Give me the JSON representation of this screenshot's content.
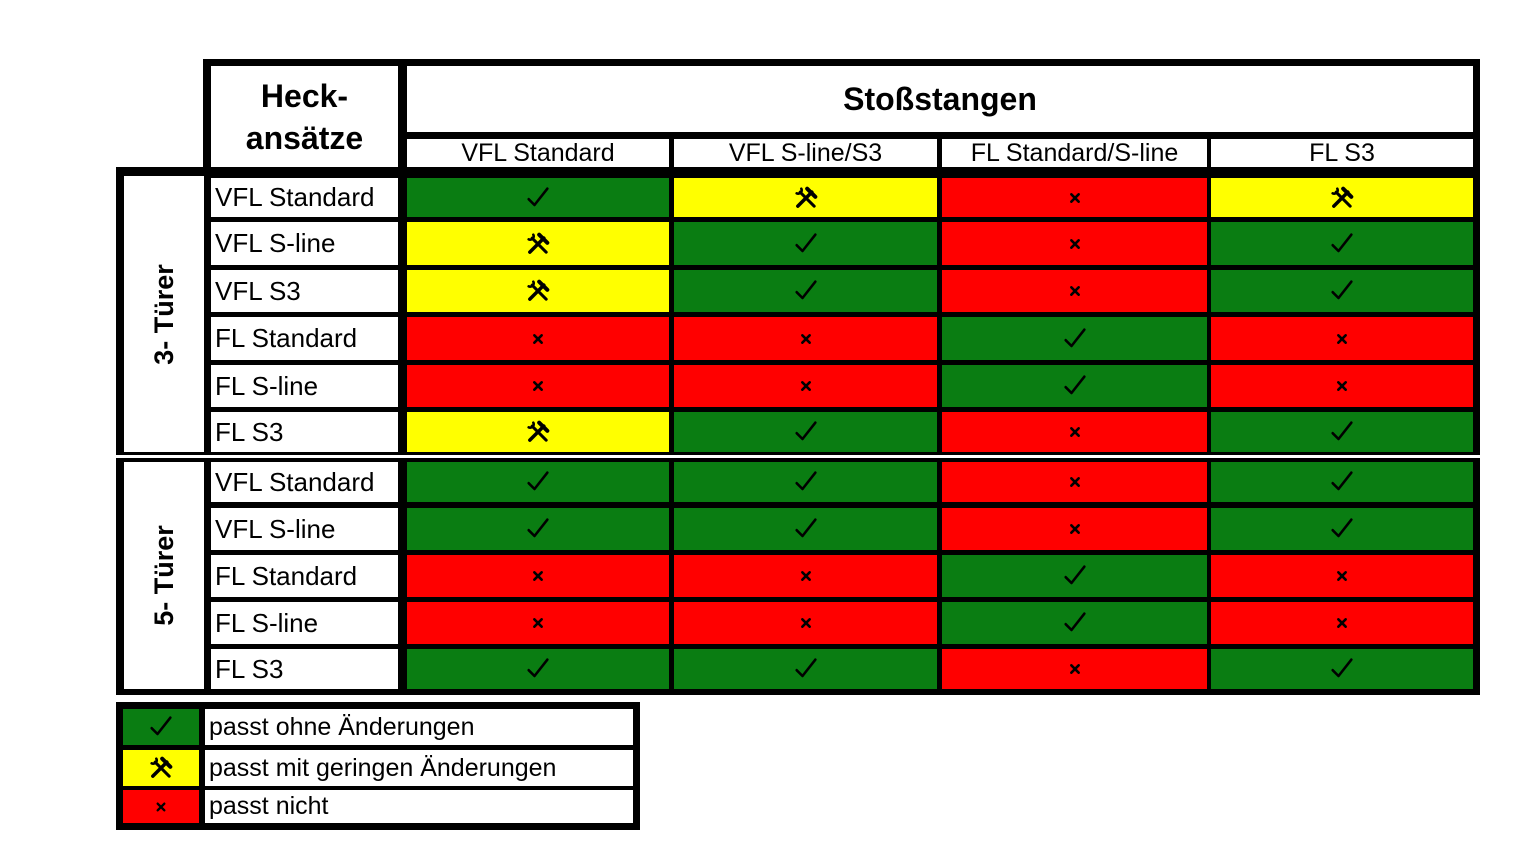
{
  "table": {
    "corner_title_line1": "Heck-",
    "corner_title_line2": "ansätze",
    "main_title": "Stoßstangen",
    "columns": [
      "VFL Standard",
      "VFL S-line/S3",
      "FL Standard/S-line",
      "FL S3"
    ],
    "groups": [
      {
        "label": "3- Türer",
        "rows": [
          {
            "label": "VFL Standard",
            "cells": [
              "ok",
              "mod",
              "no",
              "mod"
            ]
          },
          {
            "label": "VFL S-line",
            "cells": [
              "mod",
              "ok",
              "no",
              "ok"
            ]
          },
          {
            "label": "VFL S3",
            "cells": [
              "mod",
              "ok",
              "no",
              "ok"
            ]
          },
          {
            "label": "FL Standard",
            "cells": [
              "no",
              "no",
              "ok",
              "no"
            ]
          },
          {
            "label": "FL S-line",
            "cells": [
              "no",
              "no",
              "ok",
              "no"
            ]
          },
          {
            "label": "FL S3",
            "cells": [
              "mod",
              "ok",
              "no",
              "ok"
            ]
          }
        ]
      },
      {
        "label": "5- Türer",
        "rows": [
          {
            "label": "VFL Standard",
            "cells": [
              "ok",
              "ok",
              "no",
              "ok"
            ]
          },
          {
            "label": "VFL S-line",
            "cells": [
              "ok",
              "ok",
              "no",
              "ok"
            ]
          },
          {
            "label": "FL Standard",
            "cells": [
              "no",
              "no",
              "ok",
              "no"
            ]
          },
          {
            "label": "FL S-line",
            "cells": [
              "no",
              "no",
              "ok",
              "no"
            ]
          },
          {
            "label": "FL S3",
            "cells": [
              "ok",
              "ok",
              "no",
              "ok"
            ]
          }
        ]
      }
    ]
  },
  "legend": [
    {
      "status": "ok",
      "label": "passt ohne Änderungen"
    },
    {
      "status": "mod",
      "label": "passt mit geringen Änderungen"
    },
    {
      "status": "no",
      "label": "passt nicht"
    }
  ],
  "status_styles": {
    "ok": {
      "color": "#0a7d12",
      "icon": "check-icon"
    },
    "mod": {
      "color": "#ffff00",
      "icon": "hammer-wrench-icon"
    },
    "no": {
      "color": "#ff0000",
      "icon": "cross-icon"
    }
  }
}
